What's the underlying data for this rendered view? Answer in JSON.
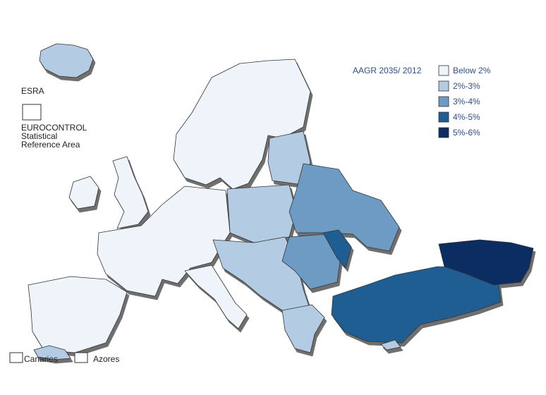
{
  "map": {
    "esra_label": "ESRA",
    "esra_description": [
      "EUROCONTROL",
      "Statistical",
      "Reference Area"
    ],
    "inset_labels": [
      "Canaries",
      "Azores"
    ]
  },
  "legend": {
    "title": "AAGR 2035/ 2012",
    "items": [
      {
        "label": "Below 2%",
        "color": "#eef4fa"
      },
      {
        "label": "2%-3%",
        "color": "#b3cce4"
      },
      {
        "label": "3%-4%",
        "color": "#6e9bc3"
      },
      {
        "label": "4%-5%",
        "color": "#1f5e92"
      },
      {
        "label": "5%-6%",
        "color": "#0c2d62"
      }
    ]
  }
}
